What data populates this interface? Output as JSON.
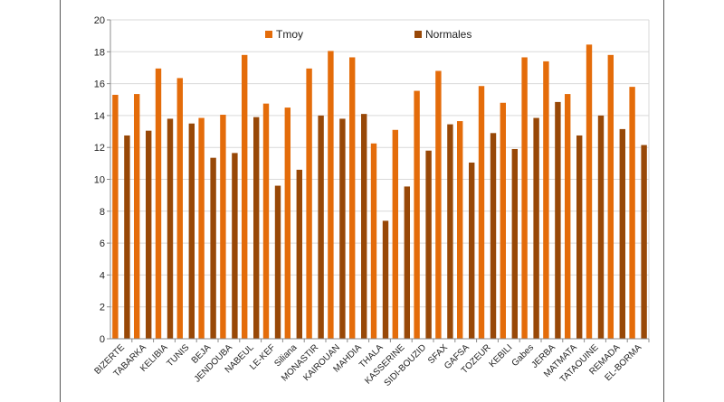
{
  "chart_data": {
    "type": "bar",
    "categories": [
      "BIZERTE",
      "TABARKA",
      "KELIBIA",
      "TUNIS",
      "BEJA",
      "JENDOUBA",
      "NABEUL",
      "LE-KEF",
      "Siliana",
      "MONASTIR",
      "KAIROUAN",
      "MAHDIA",
      "THALA",
      "KASSERINE",
      "SIDI-BOUZID",
      "SFAX",
      "GAFSA",
      "TOZEUR",
      "KEBILI",
      "Gabes",
      "JERBA",
      "MATMATA",
      "TATAOUINE",
      "REMADA",
      "EL-BORMA"
    ],
    "series": [
      {
        "name": "Tmoy",
        "color": "#E46C0A",
        "values": [
          15.3,
          15.35,
          16.95,
          16.35,
          13.85,
          14.05,
          17.8,
          14.75,
          14.5,
          16.95,
          18.05,
          17.65,
          12.25,
          13.1,
          15.55,
          16.8,
          13.65,
          15.85,
          14.8,
          17.65,
          17.4,
          15.35,
          18.45,
          17.8,
          15.8
        ]
      },
      {
        "name": "Normales",
        "color": "#984807",
        "values": [
          12.75,
          13.05,
          13.8,
          13.5,
          11.35,
          11.65,
          13.9,
          9.6,
          10.6,
          14.0,
          13.8,
          14.1,
          7.4,
          9.55,
          11.8,
          13.45,
          11.05,
          12.9,
          11.9,
          13.85,
          14.85,
          12.75,
          14.0,
          13.15,
          12.15
        ]
      }
    ],
    "ylim": [
      0,
      20
    ],
    "yticks": [
      0,
      2,
      4,
      6,
      8,
      10,
      12,
      14,
      16,
      18,
      20
    ],
    "grid": true,
    "legend_position": "top-center"
  }
}
